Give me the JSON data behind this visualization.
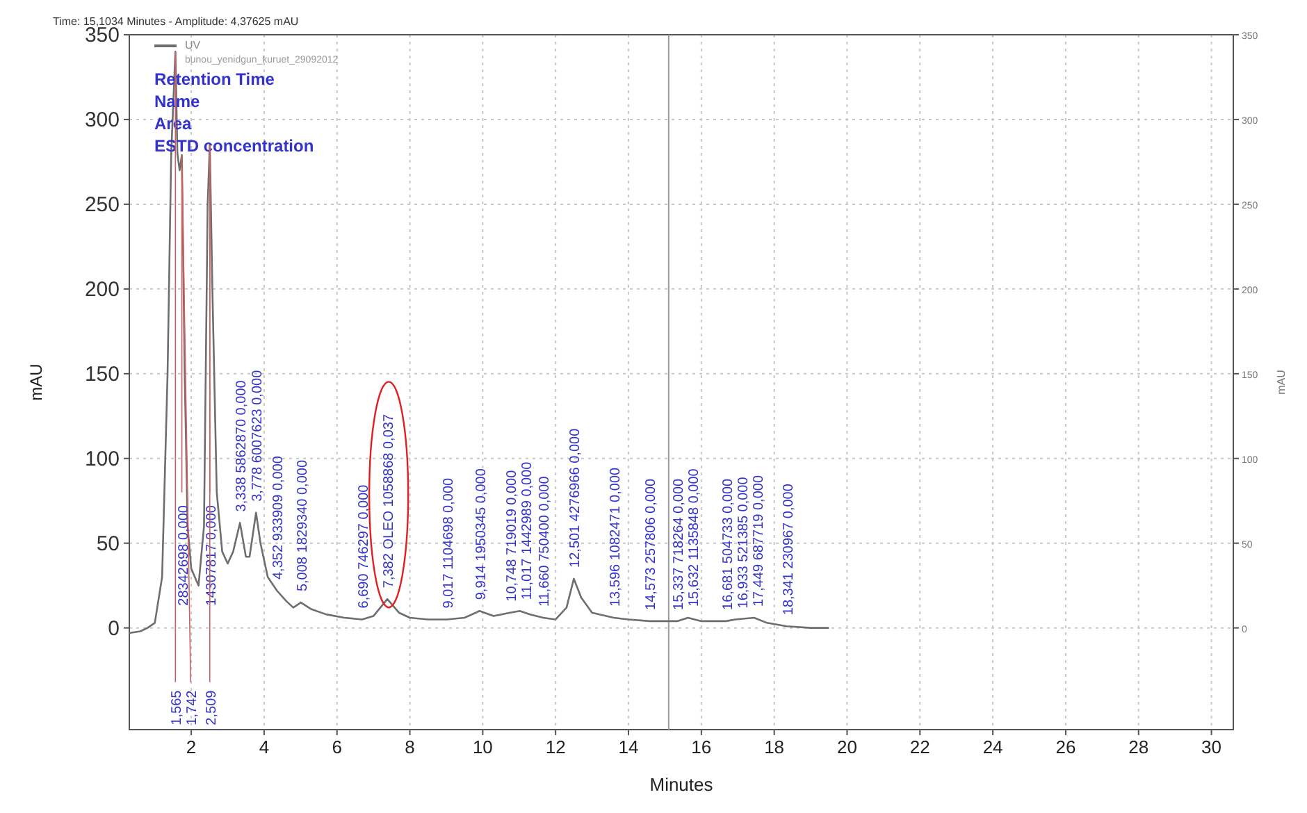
{
  "chart_data": {
    "type": "line",
    "subtitle": "Time: 15,1034 Minutes - Amplitude: 4,37625 mAU",
    "xlabel": "Minutes",
    "ylabel": "mAU",
    "y2label": "mAU",
    "xlim": [
      0.3,
      30.6
    ],
    "ylim": [
      -60,
      350
    ],
    "y2lim": [
      -60,
      350
    ],
    "xticks": [
      2,
      4,
      6,
      8,
      10,
      12,
      14,
      16,
      18,
      20,
      22,
      24,
      26,
      28,
      30
    ],
    "yticks": [
      0,
      50,
      100,
      150,
      200,
      250,
      300,
      350
    ],
    "y2ticks": [
      0,
      50,
      100,
      150,
      200,
      250,
      300,
      350
    ],
    "grid": true,
    "legend": "top left",
    "line_style": "solid",
    "marker": "none",
    "series": [
      {
        "name": "UV",
        "color": "#6e6e6e",
        "x": [
          0.3,
          0.6,
          0.8,
          1.0,
          1.2,
          1.35,
          1.45,
          1.565,
          1.62,
          1.68,
          1.742,
          1.82,
          1.9,
          2.0,
          2.2,
          2.35,
          2.45,
          2.509,
          2.58,
          2.7,
          2.85,
          3.0,
          3.15,
          3.338,
          3.5,
          3.6,
          3.778,
          3.9,
          4.1,
          4.352,
          4.6,
          4.8,
          5.008,
          5.3,
          5.7,
          6.2,
          6.69,
          7.0,
          7.382,
          7.7,
          8.0,
          8.5,
          9.017,
          9.5,
          9.914,
          10.3,
          10.748,
          11.017,
          11.3,
          11.66,
          12.0,
          12.3,
          12.501,
          12.7,
          13.0,
          13.596,
          14.0,
          14.573,
          15.0,
          15.337,
          15.632,
          16.0,
          16.681,
          16.933,
          17.449,
          17.8,
          18.341,
          19.0,
          19.5
        ],
        "values": [
          -3,
          -2,
          0,
          3,
          30,
          150,
          280,
          340,
          280,
          270,
          279,
          150,
          60,
          35,
          25,
          60,
          250,
          285,
          200,
          80,
          45,
          38,
          45,
          62,
          42,
          42,
          68,
          50,
          30,
          22,
          16,
          12,
          15,
          11,
          8,
          6,
          5,
          7,
          17,
          9,
          6,
          5,
          5,
          6,
          10,
          7,
          9,
          10,
          8,
          6,
          5,
          12,
          29,
          18,
          9,
          6,
          5,
          4,
          4,
          4,
          6,
          4,
          4,
          5,
          6,
          3,
          1,
          0,
          0
        ]
      }
    ],
    "ref_lines": [
      {
        "axis": "x",
        "value": 15.1034,
        "color": "#9a9a9a"
      }
    ],
    "annotations": [
      "bunou_yenidgun_kuruet_29092012",
      "Retention Time",
      "Name",
      "Area",
      "ESTD concentration",
      {
        "text": "28342698 0,000",
        "x": 1.742,
        "y": 279
      },
      {
        "text": "14307817 0,000",
        "x": 2.509,
        "y": 285
      },
      {
        "text": "1,565",
        "x": 1.565,
        "y": 340
      },
      {
        "text": "1,742",
        "x": 1.742,
        "y": 279
      },
      {
        "text": "2,509",
        "x": 2.509,
        "y": 285
      },
      {
        "text": "3,338 5862870 0,000",
        "x": 3.338,
        "y": 62
      },
      {
        "text": "3,778 6007623 0,000",
        "x": 3.778,
        "y": 68
      },
      {
        "text": "4,352 933909 0,000",
        "x": 4.352,
        "y": 22
      },
      {
        "text": "5,008 1829340 0,000",
        "x": 5.008,
        "y": 15
      },
      {
        "text": "6,690 746297 0,000",
        "x": 6.69,
        "y": 5
      },
      {
        "text": "7,382 OLEO 1058868 0,037",
        "x": 7.382,
        "y": 17
      },
      {
        "text": "9,017 1104698 0,000",
        "x": 9.017,
        "y": 5
      },
      {
        "text": "9,914 1950345 0,000",
        "x": 9.914,
        "y": 10
      },
      {
        "text": "10,748 719019 0,000",
        "x": 10.748,
        "y": 9
      },
      {
        "text": "11,017 1442989 0,000",
        "x": 11.017,
        "y": 10
      },
      {
        "text": "11,660 750400 0,000",
        "x": 11.66,
        "y": 6
      },
      {
        "text": "12,501 4276966 0,000",
        "x": 12.501,
        "y": 29
      },
      {
        "text": "13,596 1082471 0,000",
        "x": 13.596,
        "y": 6
      },
      {
        "text": "14,573 257806 0,000",
        "x": 14.573,
        "y": 4
      },
      {
        "text": "15,337 718264 0,000",
        "x": 15.337,
        "y": 4
      },
      {
        "text": "15,632 1135848 0,000",
        "x": 15.632,
        "y": 6
      },
      {
        "text": "16,681 504733 0,000",
        "x": 16.681,
        "y": 4
      },
      {
        "text": "16,933 521385 0,000",
        "x": 16.933,
        "y": 5
      },
      {
        "text": "17,449 687719 0,000",
        "x": 17.449,
        "y": 6
      },
      {
        "text": "18,341 230967 0,000",
        "x": 18.341,
        "y": 1
      }
    ]
  }
}
